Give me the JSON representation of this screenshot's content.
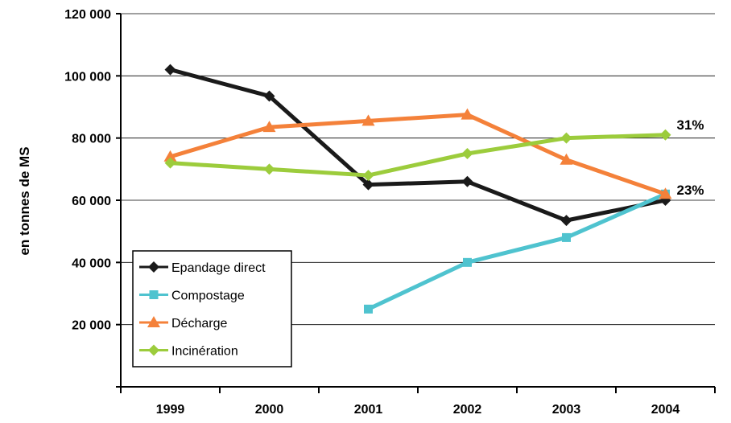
{
  "chart_data": {
    "type": "line",
    "title": "",
    "xlabel": "",
    "ylabel": "en tonnes de MS",
    "categories": [
      "1999",
      "2000",
      "2001",
      "2002",
      "2003",
      "2004"
    ],
    "ylim": [
      0,
      120000
    ],
    "yticks": [
      20000,
      40000,
      60000,
      80000,
      100000,
      120000
    ],
    "ytick_labels": [
      "20 000",
      "40 000",
      "60 000",
      "80 000",
      "100 000",
      "120 000"
    ],
    "grid": "horizontal",
    "legend_position": "bottom-left",
    "series": [
      {
        "name": "Epandage direct",
        "color": "#1a1a1a",
        "marker": "diamond",
        "values": [
          102000,
          93500,
          65000,
          66000,
          53500,
          60000
        ]
      },
      {
        "name": "Compostage",
        "color": "#4fc3cf",
        "marker": "square",
        "values": [
          null,
          null,
          25000,
          40000,
          48000,
          62000
        ]
      },
      {
        "name": "Décharge",
        "color": "#f4813a",
        "marker": "triangle",
        "values": [
          74000,
          83500,
          85500,
          87500,
          73000,
          62000
        ]
      },
      {
        "name": "Incinération",
        "color": "#9ccc3c",
        "marker": "diamond",
        "values": [
          72000,
          70000,
          68000,
          75000,
          80000,
          81000
        ]
      }
    ],
    "annotations": [
      {
        "text": "31%",
        "series": "Incinération",
        "category": "2004"
      },
      {
        "text": "23%",
        "series": "Epandage direct",
        "category": "2004"
      }
    ]
  }
}
